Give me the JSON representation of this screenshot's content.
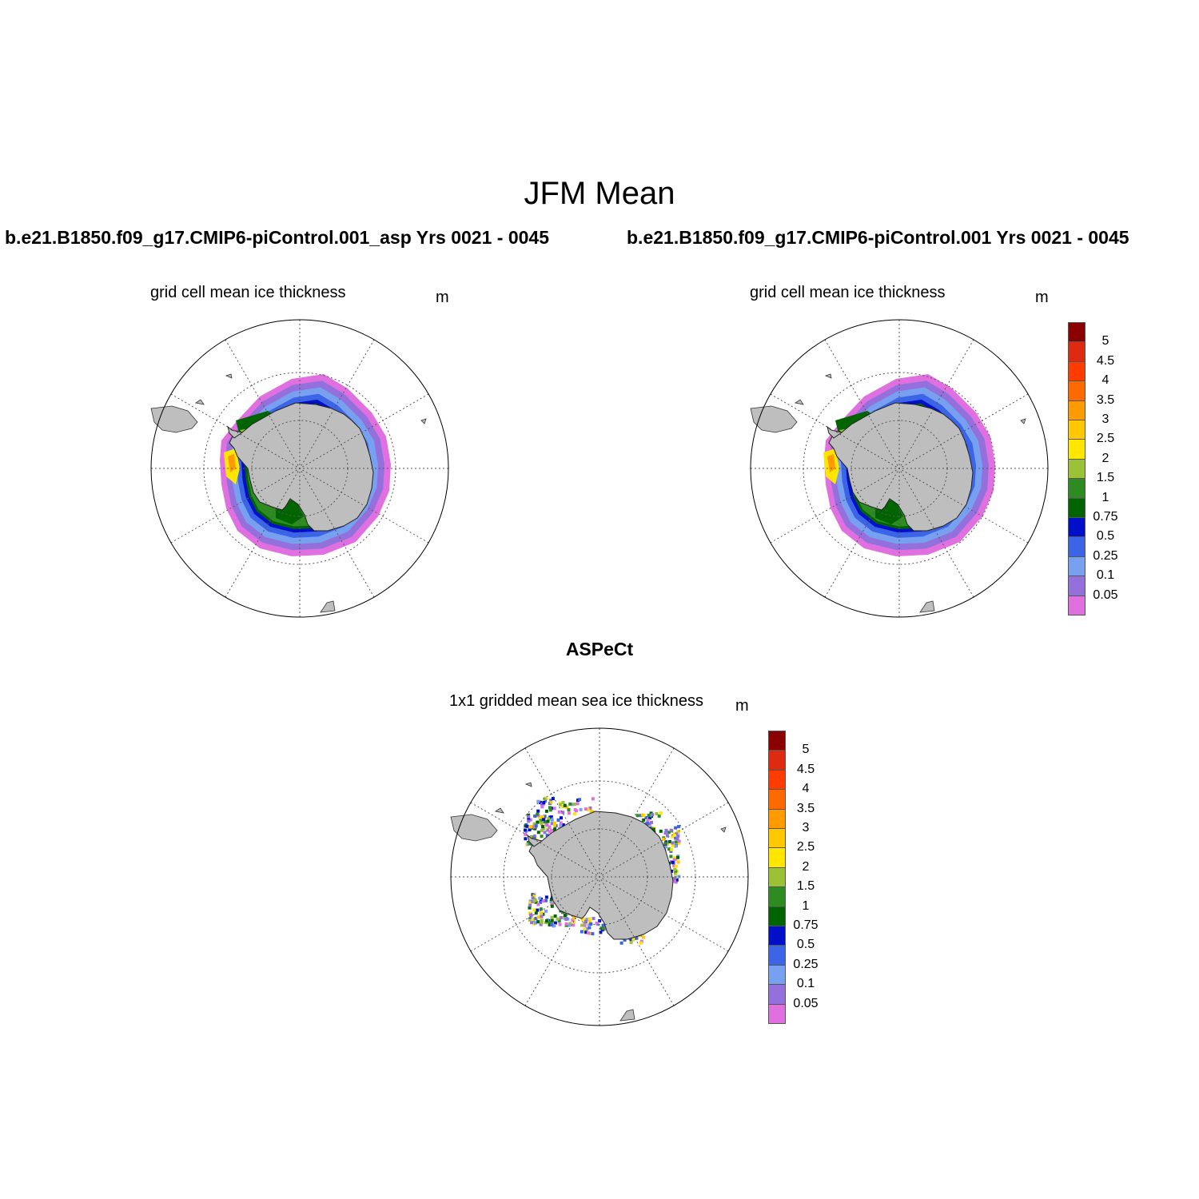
{
  "title": "JFM Mean",
  "panels": [
    {
      "id": "model-asp",
      "case_title": "b.e21.B1850.f09_g17.CMIP6-piControl.001_asp  Yrs 0021 - 0045",
      "subtitle": "grid cell mean ice thickness",
      "units": "m"
    },
    {
      "id": "model-control",
      "case_title": "b.e21.B1850.f09_g17.CMIP6-piControl.001  Yrs 0021 - 0045",
      "subtitle": "grid cell mean ice thickness",
      "units": "m"
    },
    {
      "id": "obs-aspect",
      "case_title": "ASPeCt",
      "subtitle": "1x1 gridded mean sea ice thickness",
      "units": "m"
    }
  ],
  "colorbar": {
    "labels": [
      "5",
      "4.5",
      "4",
      "3.5",
      "3",
      "2.5",
      "2",
      "1.5",
      "1",
      "0.75",
      "0.5",
      "0.25",
      "0.1",
      "0.05"
    ],
    "colors": [
      "#8b0000",
      "#dd2a10",
      "#ff3c00",
      "#ff6a00",
      "#ff9a00",
      "#ffc800",
      "#ffe600",
      "#9bc136",
      "#2e8b22",
      "#006400",
      "#0010c8",
      "#3c64e6",
      "#78a0f0",
      "#9370db",
      "#e070e0"
    ]
  },
  "land_color": "#bebebe",
  "chart_data": {
    "type": "heatmap",
    "title": "JFM Mean",
    "projection": "south-polar-stereographic",
    "variable": "ice thickness",
    "units": "m",
    "levels": [
      0.05,
      0.1,
      0.25,
      0.5,
      0.75,
      1,
      1.5,
      2,
      2.5,
      3,
      3.5,
      4,
      4.5,
      5
    ],
    "maps": [
      {
        "name": "b.e21.B1850.f09_g17.CMIP6-piControl.001_asp  Yrs 0021 - 0045",
        "subtitle": "grid cell mean ice thickness"
      },
      {
        "name": "b.e21.B1850.f09_g17.CMIP6-piControl.001  Yrs 0021 - 0045",
        "subtitle": "grid cell mean ice thickness"
      },
      {
        "name": "ASPeCt",
        "subtitle": "1x1 gridded mean sea ice thickness"
      }
    ]
  }
}
